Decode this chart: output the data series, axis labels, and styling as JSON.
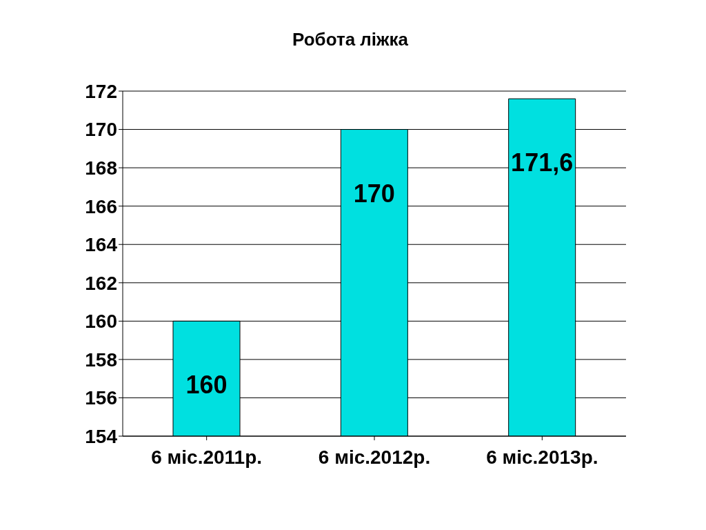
{
  "chart_data": {
    "type": "bar",
    "title": "Робота ліжка",
    "categories": [
      "6 міс.2011р.",
      "6 міс.2012р.",
      "6 міс.2013р."
    ],
    "values": [
      160,
      170,
      171.6
    ],
    "value_labels": [
      "160",
      "170",
      "171,6"
    ],
    "color": "#00e0e0",
    "ylim": [
      154,
      172
    ],
    "yticks": [
      154,
      156,
      158,
      160,
      162,
      164,
      166,
      168,
      170,
      172
    ],
    "grid": "y"
  }
}
